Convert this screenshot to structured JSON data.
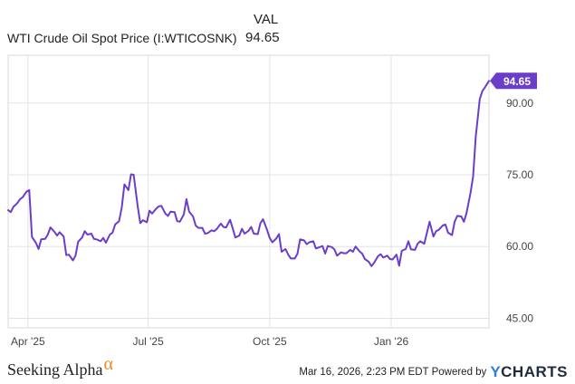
{
  "header": {
    "column_label": "VAL",
    "series_label": "WTI Crude Oil Spot Price (I:WTICOSNK)",
    "series_value": "94.65"
  },
  "chart_data": {
    "type": "line",
    "title": "",
    "xlabel": "",
    "ylabel": "",
    "ylim": [
      43,
      100
    ],
    "y_ticks": [
      "90.00",
      "75.00",
      "60.00",
      "45.00"
    ],
    "y_tick_values": [
      90,
      75,
      60,
      45
    ],
    "x_ticks": [
      "Apr '25",
      "Jul '25",
      "Oct '25",
      "Jan '26"
    ],
    "x_tick_dates": [
      "2025-04-01",
      "2025-07-01",
      "2025-10-01",
      "2026-01-01"
    ],
    "xlim": [
      "2025-03-17",
      "2026-03-16"
    ],
    "grid": true,
    "last_value_label": "94.65",
    "series": [
      {
        "name": "WTI Crude Oil Spot Price (I:WTICOSNK)",
        "color": "#6b3ec9",
        "points": [
          [
            "2025-03-17",
            67.6
          ],
          [
            "2025-03-19",
            67.2
          ],
          [
            "2025-03-21",
            68.3
          ],
          [
            "2025-03-24",
            69.1
          ],
          [
            "2025-03-26",
            69.9
          ],
          [
            "2025-03-28",
            70.3
          ],
          [
            "2025-03-31",
            71.5
          ],
          [
            "2025-04-02",
            71.8
          ],
          [
            "2025-04-04",
            62.0
          ],
          [
            "2025-04-07",
            60.8
          ],
          [
            "2025-04-09",
            59.5
          ],
          [
            "2025-04-11",
            61.5
          ],
          [
            "2025-04-14",
            61.6
          ],
          [
            "2025-04-16",
            62.5
          ],
          [
            "2025-04-18",
            64.0
          ],
          [
            "2025-04-21",
            63.1
          ],
          [
            "2025-04-23",
            62.3
          ],
          [
            "2025-04-25",
            63.0
          ],
          [
            "2025-04-28",
            62.1
          ],
          [
            "2025-04-30",
            58.2
          ],
          [
            "2025-05-02",
            58.3
          ],
          [
            "2025-05-05",
            57.1
          ],
          [
            "2025-05-07",
            58.1
          ],
          [
            "2025-05-09",
            61.0
          ],
          [
            "2025-05-12",
            61.9
          ],
          [
            "2025-05-14",
            63.2
          ],
          [
            "2025-05-16",
            62.5
          ],
          [
            "2025-05-19",
            62.7
          ],
          [
            "2025-05-21",
            61.6
          ],
          [
            "2025-05-23",
            61.5
          ],
          [
            "2025-05-26",
            61.1
          ],
          [
            "2025-05-28",
            61.8
          ],
          [
            "2025-05-30",
            60.8
          ],
          [
            "2025-06-02",
            62.5
          ],
          [
            "2025-06-04",
            62.9
          ],
          [
            "2025-06-06",
            64.6
          ],
          [
            "2025-06-09",
            65.3
          ],
          [
            "2025-06-11",
            68.2
          ],
          [
            "2025-06-13",
            73.0
          ],
          [
            "2025-06-16",
            71.8
          ],
          [
            "2025-06-18",
            75.1
          ],
          [
            "2025-06-20",
            75.0
          ],
          [
            "2025-06-23",
            68.5
          ],
          [
            "2025-06-25",
            64.9
          ],
          [
            "2025-06-27",
            65.5
          ],
          [
            "2025-06-30",
            65.1
          ],
          [
            "2025-07-02",
            67.5
          ],
          [
            "2025-07-04",
            66.9
          ],
          [
            "2025-07-07",
            67.9
          ],
          [
            "2025-07-09",
            68.4
          ],
          [
            "2025-07-11",
            68.5
          ],
          [
            "2025-07-14",
            66.9
          ],
          [
            "2025-07-16",
            66.4
          ],
          [
            "2025-07-18",
            67.3
          ],
          [
            "2025-07-21",
            67.2
          ],
          [
            "2025-07-23",
            65.3
          ],
          [
            "2025-07-25",
            65.2
          ],
          [
            "2025-07-28",
            66.7
          ],
          [
            "2025-07-30",
            69.9
          ],
          [
            "2025-08-01",
            67.3
          ],
          [
            "2025-08-04",
            66.3
          ],
          [
            "2025-08-06",
            64.4
          ],
          [
            "2025-08-08",
            63.9
          ],
          [
            "2025-08-11",
            63.9
          ],
          [
            "2025-08-13",
            62.7
          ],
          [
            "2025-08-15",
            62.8
          ],
          [
            "2025-08-18",
            63.4
          ],
          [
            "2025-08-20",
            63.2
          ],
          [
            "2025-08-22",
            63.7
          ],
          [
            "2025-08-25",
            64.8
          ],
          [
            "2025-08-27",
            64.1
          ],
          [
            "2025-08-29",
            64.0
          ],
          [
            "2025-09-01",
            65.6
          ],
          [
            "2025-09-03",
            63.8
          ],
          [
            "2025-09-05",
            61.9
          ],
          [
            "2025-09-08",
            62.3
          ],
          [
            "2025-09-10",
            63.7
          ],
          [
            "2025-09-12",
            62.7
          ],
          [
            "2025-09-15",
            63.3
          ],
          [
            "2025-09-17",
            64.1
          ],
          [
            "2025-09-19",
            62.7
          ],
          [
            "2025-09-22",
            62.6
          ],
          [
            "2025-09-24",
            64.9
          ],
          [
            "2025-09-26",
            65.7
          ],
          [
            "2025-09-29",
            63.5
          ],
          [
            "2025-10-01",
            61.8
          ],
          [
            "2025-10-03",
            60.9
          ],
          [
            "2025-10-06",
            61.7
          ],
          [
            "2025-10-08",
            62.6
          ],
          [
            "2025-10-10",
            58.9
          ],
          [
            "2025-10-13",
            59.5
          ],
          [
            "2025-10-15",
            58.3
          ],
          [
            "2025-10-17",
            57.5
          ],
          [
            "2025-10-20",
            57.5
          ],
          [
            "2025-10-22",
            58.5
          ],
          [
            "2025-10-24",
            61.5
          ],
          [
            "2025-10-27",
            61.3
          ],
          [
            "2025-10-29",
            60.5
          ],
          [
            "2025-10-31",
            60.9
          ],
          [
            "2025-11-03",
            61.1
          ],
          [
            "2025-11-05",
            59.6
          ],
          [
            "2025-11-07",
            59.8
          ],
          [
            "2025-11-10",
            60.1
          ],
          [
            "2025-11-12",
            58.5
          ],
          [
            "2025-11-14",
            60.1
          ],
          [
            "2025-11-17",
            59.9
          ],
          [
            "2025-11-19",
            59.4
          ],
          [
            "2025-11-21",
            58.1
          ],
          [
            "2025-11-24",
            58.8
          ],
          [
            "2025-11-26",
            58.6
          ],
          [
            "2025-11-28",
            58.6
          ],
          [
            "2025-12-01",
            59.3
          ],
          [
            "2025-12-03",
            58.9
          ],
          [
            "2025-12-05",
            60.0
          ],
          [
            "2025-12-08",
            59.0
          ],
          [
            "2025-12-10",
            58.5
          ],
          [
            "2025-12-12",
            57.4
          ],
          [
            "2025-12-15",
            56.8
          ],
          [
            "2025-12-17",
            55.9
          ],
          [
            "2025-12-19",
            56.6
          ],
          [
            "2025-12-22",
            58.0
          ],
          [
            "2025-12-24",
            58.4
          ],
          [
            "2025-12-26",
            57.7
          ],
          [
            "2025-12-29",
            58.1
          ],
          [
            "2025-12-31",
            57.4
          ],
          [
            "2026-01-02",
            57.3
          ],
          [
            "2026-01-05",
            58.3
          ],
          [
            "2026-01-07",
            56.0
          ],
          [
            "2026-01-09",
            59.1
          ],
          [
            "2026-01-12",
            59.5
          ],
          [
            "2026-01-14",
            61.1
          ],
          [
            "2026-01-16",
            59.4
          ],
          [
            "2026-01-19",
            59.3
          ],
          [
            "2026-01-21",
            60.6
          ],
          [
            "2026-01-23",
            61.1
          ],
          [
            "2026-01-26",
            60.6
          ],
          [
            "2026-01-28",
            62.8
          ],
          [
            "2026-01-30",
            65.2
          ],
          [
            "2026-02-02",
            62.1
          ],
          [
            "2026-02-04",
            63.2
          ],
          [
            "2026-02-06",
            63.5
          ],
          [
            "2026-02-09",
            64.4
          ],
          [
            "2026-02-11",
            64.6
          ],
          [
            "2026-02-13",
            62.9
          ],
          [
            "2026-02-16",
            62.4
          ],
          [
            "2026-02-18",
            65.2
          ],
          [
            "2026-02-20",
            66.4
          ],
          [
            "2026-02-23",
            66.3
          ],
          [
            "2026-02-25",
            65.2
          ],
          [
            "2026-02-27",
            67.0
          ],
          [
            "2026-03-02",
            71.2
          ],
          [
            "2026-03-04",
            74.7
          ],
          [
            "2026-03-06",
            83.0
          ],
          [
            "2026-03-09",
            90.8
          ],
          [
            "2026-03-11",
            92.5
          ],
          [
            "2026-03-13",
            93.3
          ],
          [
            "2026-03-16",
            94.65
          ]
        ]
      }
    ]
  },
  "footer": {
    "logo_text": "Seeking Alpha",
    "logo_symbol": "α",
    "timestamp": "Mar 16, 2026, 2:23 PM EDT Powered by",
    "brand_y": "Y",
    "brand_rest": "CHARTS"
  }
}
